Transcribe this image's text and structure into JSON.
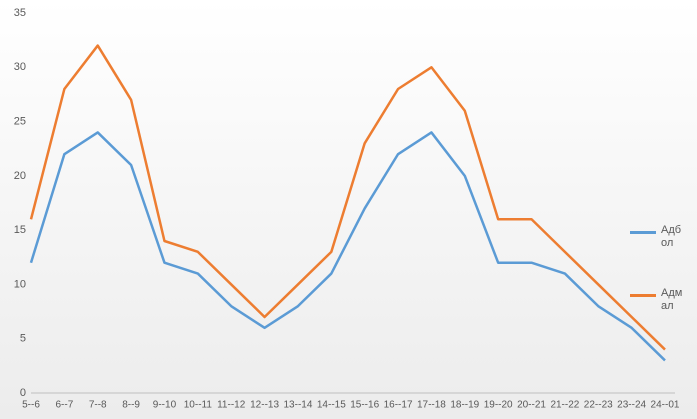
{
  "chart_data": {
    "type": "line",
    "categories": [
      "5--6",
      "6--7",
      "7--8",
      "8--9",
      "9--10",
      "10--11",
      "11--12",
      "12--13",
      "13--14",
      "14--15",
      "15--16",
      "16--17",
      "17--18",
      "18--19",
      "19--20",
      "20--21",
      "21--22",
      "22--23",
      "23--24",
      "24--01"
    ],
    "series": [
      {
        "name": "Адбол",
        "color": "#5b9bd5",
        "values": [
          12,
          22,
          24,
          21,
          12,
          11,
          8,
          6,
          8,
          11,
          17,
          22,
          24,
          20,
          12,
          12,
          11,
          8,
          6,
          3
        ]
      },
      {
        "name": "Адмал",
        "color": "#ed7d31",
        "values": [
          16,
          28,
          32,
          27,
          14,
          13,
          10,
          7,
          10,
          13,
          23,
          28,
          30,
          26,
          16,
          16,
          13,
          10,
          7,
          4
        ]
      }
    ],
    "ylim": [
      0,
      35
    ],
    "yticks": [
      0,
      5,
      10,
      15,
      20,
      25,
      30,
      35
    ],
    "grid": false,
    "legend": "right"
  }
}
